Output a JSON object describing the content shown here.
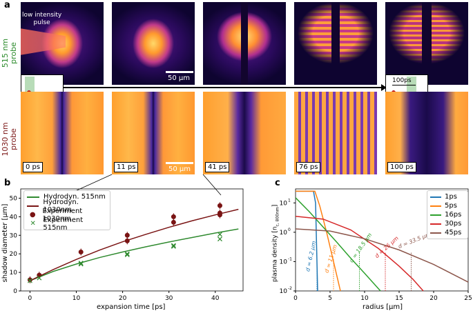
{
  "panel_a": {
    "letter": "a",
    "probe_515": "515 nm\nprobe",
    "probe_515_l1": "515 nm",
    "probe_515_l2": "probe",
    "probe_1030_l1": "1030 nm",
    "probe_1030_l2": "probe",
    "pulse_label_l1": "low intensity",
    "pulse_label_l2": "pulse",
    "scale_top": "50 µm",
    "scale_bottom": "50 µm",
    "timing_t": "t",
    "timing_delay": "100ps",
    "frames": [
      "0 ps",
      "11 ps",
      "41 ps",
      "76 ps",
      "100 ps"
    ],
    "colors": {
      "probe_515": "#2a8a2a",
      "probe_1030": "#7a1414"
    }
  },
  "panel_b": {
    "letter": "b",
    "ylabel": "shadow diameter [µm]",
    "xlabel": "expansion time [ps]",
    "legend": [
      "Hydrodyn. 515nm",
      "Hydrodyn. 1030nm",
      "Experiment 1030nm",
      "Experiment 515nm"
    ],
    "x_ticks": [
      "0",
      "10",
      "20",
      "30",
      "40"
    ],
    "y_ticks": [
      "0",
      "10",
      "20",
      "30",
      "40",
      "50"
    ]
  },
  "panel_c": {
    "letter": "c",
    "ylabel": "plasma density [n",
    "ylabel_sub": "c, 800nm",
    "ylabel_end": "]",
    "xlabel": "radius [µm]",
    "x_ticks": [
      "0",
      "5",
      "10",
      "15",
      "20",
      "25"
    ],
    "y_ticks": [
      "10",
      "10",
      "10",
      "10"
    ],
    "y_exps": [
      "1",
      "0",
      "-1",
      "-2"
    ],
    "legend": [
      "1ps",
      "5ps",
      "16ps",
      "30ps",
      "45ps"
    ],
    "annotations": [
      "d = 6.2 µm",
      "d = 11 µm",
      "d = 18.5 µm",
      "d = 26 µm",
      "d = 33.5 µm"
    ]
  },
  "chart_data": [
    {
      "type": "scatter",
      "title": "",
      "xlabel": "expansion time [ps]",
      "ylabel": "shadow diameter [µm]",
      "xlim": [
        -2,
        46
      ],
      "ylim": [
        0,
        55
      ],
      "series": [
        {
          "name": "Hydrodyn. 515nm",
          "kind": "line",
          "color": "#2f8a2f",
          "x": [
            0,
            5,
            10,
            15,
            20,
            25,
            30,
            35,
            40,
            45
          ],
          "y": [
            5.5,
            10.5,
            14.5,
            18,
            21,
            23.8,
            26.4,
            28.8,
            31.2,
            33.4
          ]
        },
        {
          "name": "Hydrodyn. 1030nm",
          "kind": "line",
          "color": "#7a1414",
          "x": [
            0,
            5,
            10,
            15,
            20,
            25,
            30,
            35,
            40,
            45
          ],
          "y": [
            5.5,
            11.5,
            17,
            22,
            26.5,
            30.5,
            34.3,
            37.8,
            41,
            44
          ]
        },
        {
          "name": "Experiment 1030nm",
          "kind": "points",
          "color": "#7a1414",
          "x": [
            0,
            2,
            11,
            21,
            21,
            31,
            31,
            41,
            41,
            41
          ],
          "y": [
            6,
            8.5,
            21,
            30,
            27,
            37,
            40,
            42,
            46,
            41
          ]
        },
        {
          "name": "Experiment 515nm",
          "kind": "crosses",
          "color": "#2f8a2f",
          "x": [
            0,
            2,
            11,
            11,
            21,
            21,
            31,
            31,
            41,
            41
          ],
          "y": [
            5.5,
            7,
            14.5,
            15,
            20,
            19.5,
            24,
            24.5,
            30.5,
            28
          ]
        }
      ]
    },
    {
      "type": "line",
      "title": "",
      "xlabel": "radius [µm]",
      "ylabel": "plasma density [n c,800nm]",
      "xlim": [
        0,
        25
      ],
      "ylim": [
        0.01,
        30
      ],
      "yscale": "log",
      "series": [
        {
          "name": "1ps",
          "color": "#1f77b4",
          "x": [
            0,
            2.6,
            2.9,
            3.0,
            3.1,
            3.2
          ],
          "y": [
            25,
            25,
            10,
            1,
            0.1,
            0.01
          ]
        },
        {
          "name": "5ps",
          "color": "#ff7f0e",
          "x": [
            0,
            2.8,
            3.5,
            4.5,
            5.5,
            6.5
          ],
          "y": [
            25,
            25,
            8,
            1,
            0.1,
            0.01
          ]
        },
        {
          "name": "16ps",
          "color": "#2ca02c",
          "x": [
            0,
            2,
            4,
            6,
            8,
            10,
            12.3
          ],
          "y": [
            15,
            5,
            1.5,
            0.45,
            0.13,
            0.04,
            0.01
          ]
        },
        {
          "name": "30ps",
          "color": "#d62728",
          "x": [
            0,
            4,
            8,
            12,
            15,
            17,
            18.5
          ],
          "y": [
            3.5,
            2.8,
            1.2,
            0.28,
            0.07,
            0.025,
            0.01
          ]
        },
        {
          "name": "45ps",
          "color": "#8c564b",
          "x": [
            0,
            5,
            10,
            15,
            20,
            25
          ],
          "y": [
            1.3,
            1.1,
            0.6,
            0.25,
            0.08,
            0.02
          ]
        }
      ],
      "dotted_markers": [
        {
          "x": 3.1,
          "y": 0.2,
          "color": "#1f77b4"
        },
        {
          "x": 5.5,
          "y": 0.12,
          "color": "#ff7f0e"
        },
        {
          "x": 9.25,
          "y": 0.2,
          "color": "#2ca02c"
        },
        {
          "x": 13,
          "y": 0.2,
          "color": "#d62728"
        },
        {
          "x": 16.75,
          "y": 0.2,
          "color": "#8c564b"
        }
      ]
    }
  ]
}
